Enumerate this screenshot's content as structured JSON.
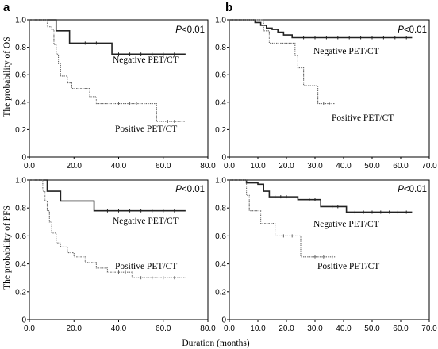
{
  "figure": {
    "panel_letters": [
      "a",
      "b"
    ],
    "xlabel": "Duration (months)",
    "ylabels": [
      "The probability of OS",
      "The probability of PFS"
    ]
  },
  "chart_data": [
    {
      "id": "a-os",
      "type": "line",
      "step": true,
      "p_value": "P<0.01",
      "xlim": [
        0,
        80
      ],
      "ylim": [
        0,
        1.0
      ],
      "xticks": [
        "0.0",
        "20.0",
        "40.0",
        "60.0",
        "80.0"
      ],
      "yticks": [
        "0",
        "0.2",
        "0.4",
        "0.6",
        "0.8",
        "1.0"
      ],
      "series": [
        {
          "name": "Negative PET/CT",
          "style": "solid",
          "color": "#222222",
          "x": [
            0,
            12,
            18,
            37,
            70
          ],
          "y": [
            1.0,
            0.92,
            0.83,
            0.75,
            0.75
          ],
          "censor_x": [
            25,
            30,
            40,
            45,
            50,
            55,
            60,
            65
          ]
        },
        {
          "name": "Positive PET/CT",
          "style": "dotted",
          "color": "#666666",
          "x": [
            0,
            8,
            10,
            11,
            12,
            13,
            14,
            17,
            19,
            27,
            30,
            57,
            70
          ],
          "y": [
            1.0,
            0.95,
            0.93,
            0.82,
            0.75,
            0.68,
            0.59,
            0.54,
            0.5,
            0.44,
            0.39,
            0.26,
            0.26
          ],
          "censor_x": [
            40,
            45,
            48,
            62,
            65
          ]
        }
      ]
    },
    {
      "id": "b-os",
      "type": "line",
      "step": true,
      "p_value": "P<0.01",
      "xlim": [
        0,
        70
      ],
      "ylim": [
        0,
        1.0
      ],
      "xticks": [
        "0.0",
        "10.0",
        "20.0",
        "30.0",
        "40.0",
        "50.0",
        "60.0",
        "70.0"
      ],
      "yticks": [
        "0",
        "0.2",
        "0.4",
        "0.6",
        "0.8",
        "1.0"
      ],
      "series": [
        {
          "name": "Negative PET/CT",
          "style": "solid",
          "color": "#222222",
          "x": [
            0,
            9,
            11,
            13,
            15,
            17,
            19,
            22,
            64
          ],
          "y": [
            1.0,
            0.98,
            0.96,
            0.94,
            0.93,
            0.91,
            0.89,
            0.87,
            0.87
          ],
          "censor_x": [
            26,
            30,
            34,
            38,
            42,
            46,
            50,
            54,
            58,
            62
          ]
        },
        {
          "name": "Positive PET/CT",
          "style": "dotted",
          "color": "#666666",
          "x": [
            0,
            12,
            14,
            23,
            24,
            26,
            31,
            37
          ],
          "y": [
            1.0,
            0.92,
            0.83,
            0.74,
            0.65,
            0.52,
            0.39,
            0.39
          ],
          "censor_x": [
            33,
            35
          ]
        }
      ]
    },
    {
      "id": "a-pfs",
      "type": "line",
      "step": true,
      "p_value": "P<0.01",
      "xlim": [
        0,
        80
      ],
      "ylim": [
        0,
        1.0
      ],
      "xticks": [
        "0.0",
        "20.0",
        "40.0",
        "60.0",
        "80.0"
      ],
      "yticks": [
        "0",
        "0.2",
        "0.4",
        "0.6",
        "0.8",
        "1.0"
      ],
      "series": [
        {
          "name": "Negative PET/CT",
          "style": "solid",
          "color": "#222222",
          "x": [
            0,
            8,
            14,
            29,
            70
          ],
          "y": [
            1.0,
            0.92,
            0.85,
            0.78,
            0.78
          ],
          "censor_x": [
            35,
            40,
            45,
            50,
            55,
            60,
            65
          ]
        },
        {
          "name": "Positive PET/CT",
          "style": "dotted",
          "color": "#666666",
          "x": [
            0,
            6,
            7,
            8,
            9,
            10,
            12,
            14,
            17,
            20,
            25,
            30,
            35,
            46,
            70
          ],
          "y": [
            1.0,
            0.92,
            0.85,
            0.78,
            0.7,
            0.62,
            0.55,
            0.52,
            0.48,
            0.45,
            0.41,
            0.37,
            0.34,
            0.3,
            0.3
          ],
          "censor_x": [
            40,
            43,
            50,
            55,
            60,
            65
          ]
        }
      ]
    },
    {
      "id": "b-pfs",
      "type": "line",
      "step": true,
      "p_value": "P<0.01",
      "xlim": [
        0,
        70
      ],
      "ylim": [
        0,
        1.0
      ],
      "xticks": [
        "0.0",
        "10.0",
        "20.0",
        "30.0",
        "40.0",
        "50.0",
        "60.0",
        "70.0"
      ],
      "yticks": [
        "0",
        "0.2",
        "0.4",
        "0.6",
        "0.8",
        "1.0"
      ],
      "series": [
        {
          "name": "Negative PET/CT",
          "style": "solid",
          "color": "#222222",
          "x": [
            0,
            6,
            10,
            12,
            14,
            24,
            32,
            41,
            64
          ],
          "y": [
            1.0,
            0.98,
            0.97,
            0.92,
            0.88,
            0.86,
            0.81,
            0.77,
            0.77
          ],
          "censor_x": [
            16,
            18,
            20,
            28,
            30,
            36,
            38,
            44,
            47,
            50,
            53,
            56,
            59,
            62
          ]
        },
        {
          "name": "Positive PET/CT",
          "style": "dotted",
          "color": "#666666",
          "x": [
            0,
            6,
            7,
            11,
            16,
            25,
            37
          ],
          "y": [
            1.0,
            0.89,
            0.78,
            0.69,
            0.6,
            0.45,
            0.45
          ],
          "censor_x": [
            19,
            22,
            30,
            33,
            36
          ]
        }
      ]
    }
  ]
}
